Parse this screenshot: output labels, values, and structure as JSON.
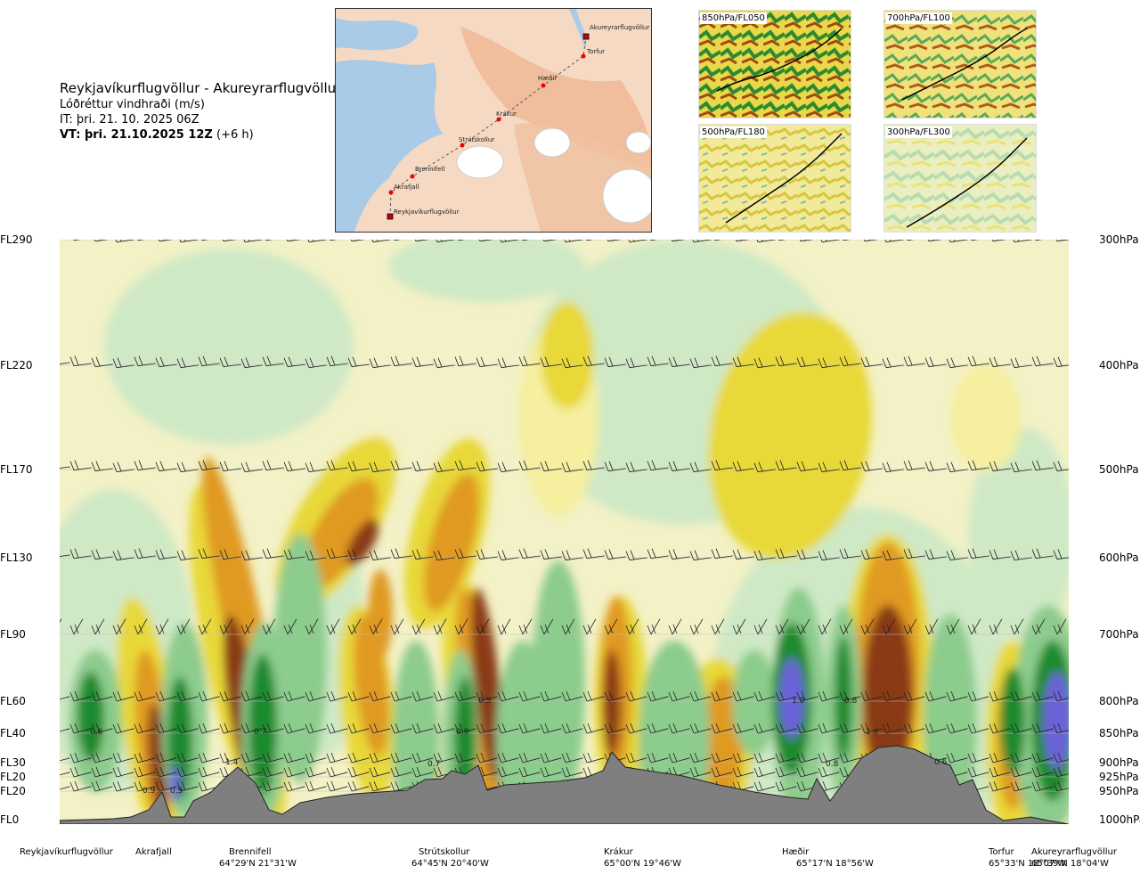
{
  "header": {
    "route": "Reykjavíkurflugvöllur - Akureyrarflugvöllur",
    "parameter": "Lóðréttur vindhraði (m/s)",
    "issue_time": "IT: þri. 21. 10. 2025 06Z",
    "valid_prefix": "VT: þri. 21.10.2025 12Z",
    "valid_suffix": " (+6 h)"
  },
  "route_map": {
    "points": [
      {
        "name": "Akureyrarflugvöllur",
        "type": "airport"
      },
      {
        "name": "Torfur",
        "type": "waypoint"
      },
      {
        "name": "Hæðir",
        "type": "waypoint"
      },
      {
        "name": "Krákur",
        "type": "waypoint"
      },
      {
        "name": "Strútskollur",
        "type": "waypoint"
      },
      {
        "name": "Brennifell",
        "type": "waypoint"
      },
      {
        "name": "Akrafjall",
        "type": "waypoint"
      },
      {
        "name": "Reykjavíkurflugvöllur",
        "type": "airport"
      }
    ]
  },
  "level_maps": [
    {
      "label": "850hPa/FL050"
    },
    {
      "label": "700hPa/FL100"
    },
    {
      "label": "500hPa/FL180"
    },
    {
      "label": "300hPa/FL300"
    }
  ],
  "chart_data": {
    "type": "heatmap",
    "title": "Lóðréttur vindhraði (m/s)",
    "xlabel": "",
    "ylabel": "",
    "y_levels": [
      {
        "fl": "FL290",
        "hpa": "300hPa"
      },
      {
        "fl": "FL220",
        "hpa": "400hPa"
      },
      {
        "fl": "FL170",
        "hpa": "500hPa"
      },
      {
        "fl": "FL130",
        "hpa": "600hPa"
      },
      {
        "fl": "FL90",
        "hpa": "700hPa"
      },
      {
        "fl": "FL60",
        "hpa": "800hPa"
      },
      {
        "fl": "FL40",
        "hpa": "850hPa"
      },
      {
        "fl": "FL30",
        "hpa": "900hPa"
      },
      {
        "fl": "FL20",
        "hpa": "925hPa"
      },
      {
        "fl": "FL20",
        "hpa": "950hPa"
      },
      {
        "fl": "FL0",
        "hpa": "1000hPa"
      }
    ],
    "stations": [
      {
        "name": "Reykjavíkurflugvöllur",
        "coord": ""
      },
      {
        "name": "Akrafjall",
        "coord": ""
      },
      {
        "name": "Brennifell",
        "coord": "64°29'N 21°31'W"
      },
      {
        "name": "Strútskollur",
        "coord": "64°45'N 20°40'W"
      },
      {
        "name": "Krákur",
        "coord": "65°00'N 19°46'W"
      },
      {
        "name": "Hæðir",
        "coord": "65°17'N 18°56'W"
      },
      {
        "name": "Torfur",
        "coord": "65°33'N 18°07'W"
      },
      {
        "name": "Akureyrarflugvöllur",
        "coord": "65°39'N 18°04'W"
      }
    ],
    "value_labels": [
      "0.6",
      "0.9",
      "0.9",
      "1.4",
      "0.7",
      "0.7",
      "0.9",
      "0.5",
      "1.0",
      "0.8",
      "0.8",
      "1.6",
      "0.6",
      "1.7"
    ],
    "colors": {
      "strong_up": "#8a3a14",
      "up_orange": "#e09a20",
      "up_yellow": "#e8d838",
      "weak_yellow": "#f5ef9f",
      "neutral": "#f3f1c6",
      "weak_green": "#cfe9c6",
      "green": "#8ccc8c",
      "dark_green": "#1e8a2e",
      "purple": "#6a62d8",
      "terrain": "#7f7f7f"
    }
  }
}
